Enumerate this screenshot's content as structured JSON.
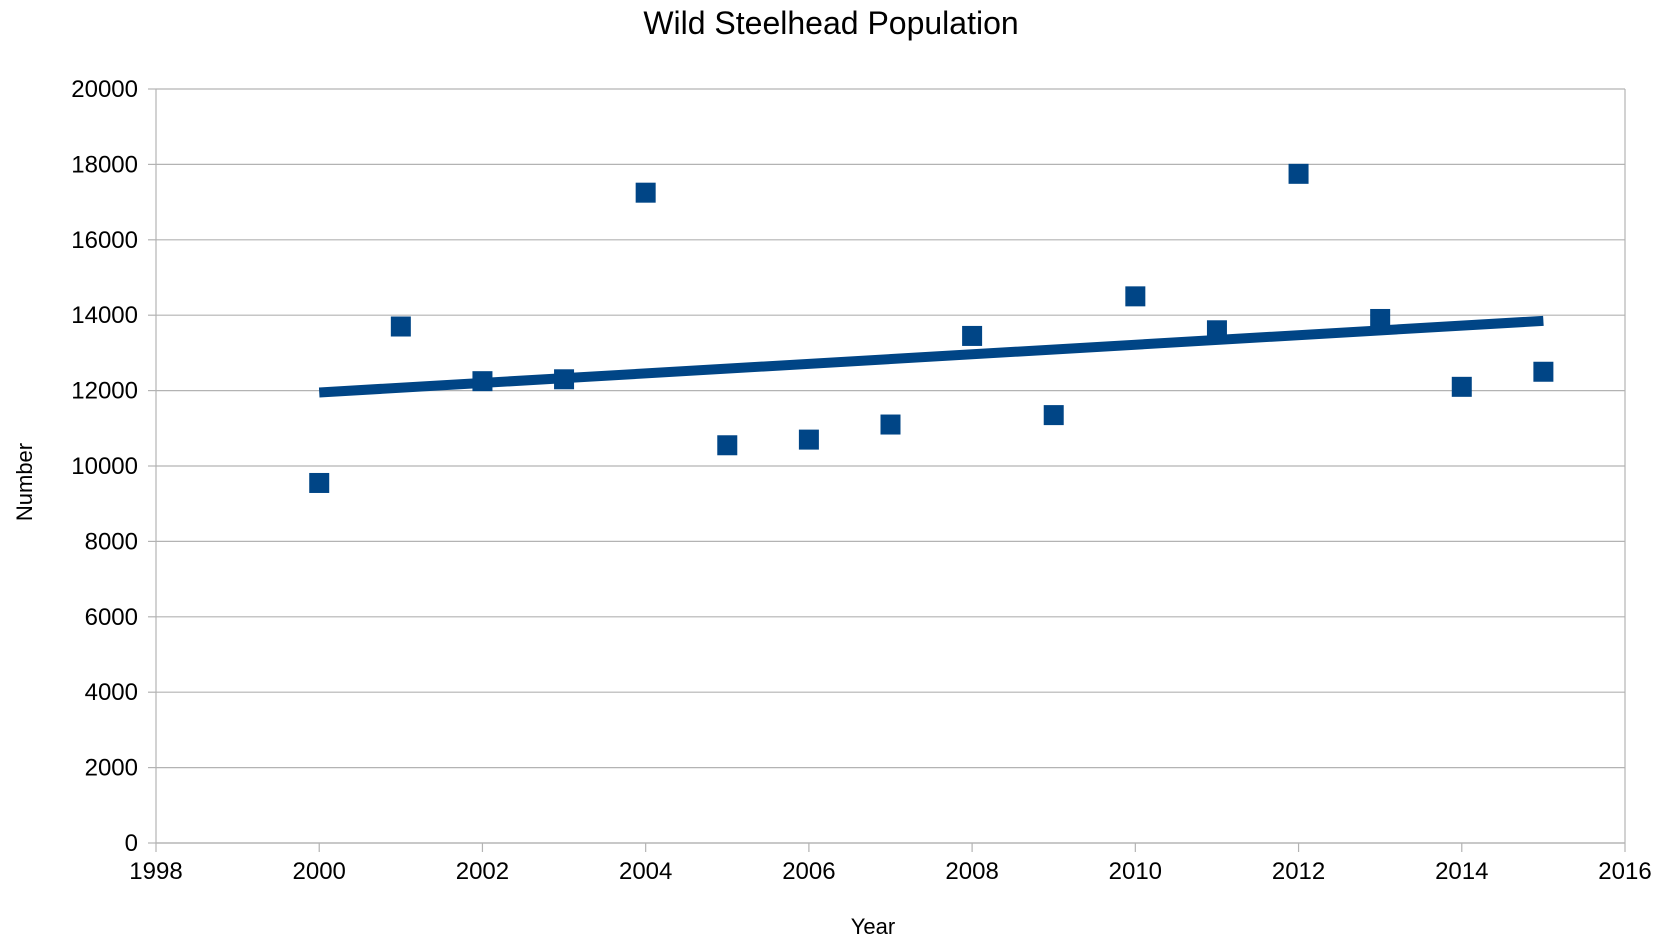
{
  "chart_data": {
    "type": "scatter",
    "title": "Wild Steelhead Population",
    "xlabel": "Year",
    "ylabel": "Number",
    "xlim": [
      1998,
      2016
    ],
    "ylim": [
      0,
      20000
    ],
    "x_ticks": [
      1998,
      2000,
      2002,
      2004,
      2006,
      2008,
      2010,
      2012,
      2014,
      2016
    ],
    "y_ticks": [
      0,
      2000,
      4000,
      6000,
      8000,
      10000,
      12000,
      14000,
      16000,
      18000,
      20000
    ],
    "grid": true,
    "legend": "none",
    "series": [
      {
        "marker": "square",
        "color": "#004586",
        "x": [
          2000,
          2001,
          2002,
          2003,
          2004,
          2005,
          2006,
          2007,
          2008,
          2009,
          2010,
          2011,
          2012,
          2013,
          2014,
          2015
        ],
        "y": [
          9550,
          13700,
          12250,
          12300,
          17250,
          10550,
          10700,
          11100,
          13450,
          11350,
          14500,
          13600,
          17750,
          13900,
          12100,
          12500
        ]
      }
    ],
    "trendline": {
      "type": "linear",
      "color": "#004586",
      "x": [
        2000,
        2015
      ],
      "y": [
        11950,
        13850
      ]
    }
  }
}
